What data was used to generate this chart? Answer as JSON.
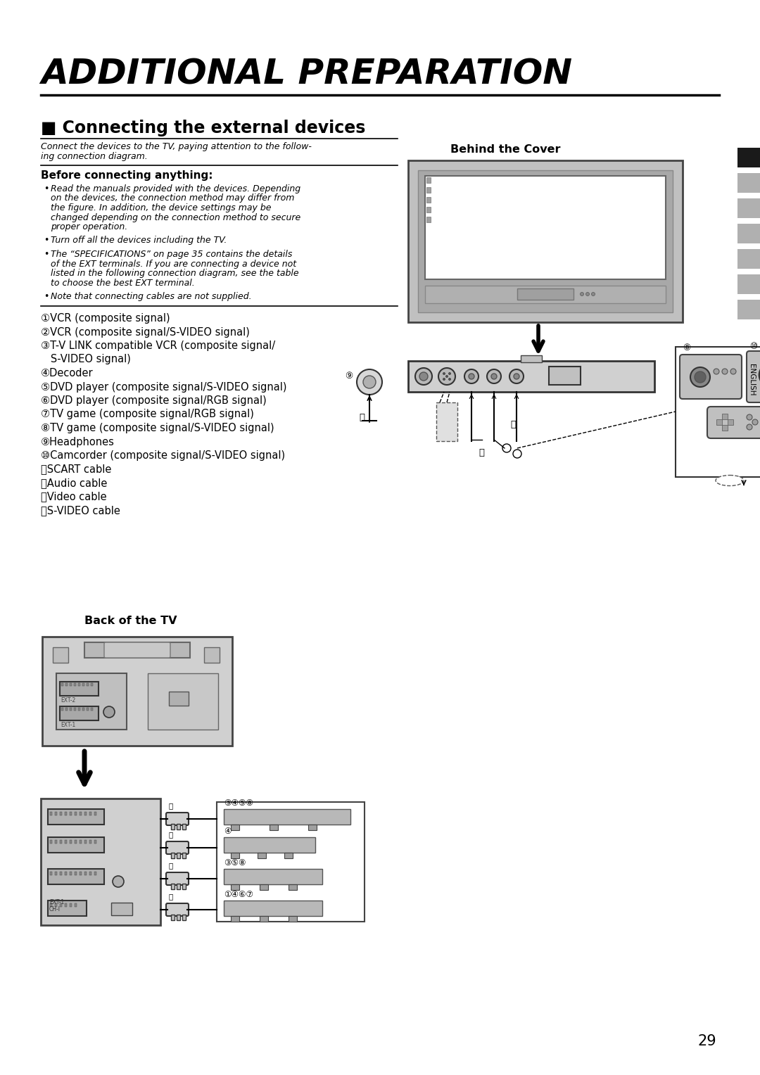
{
  "title": "ADDITIONAL PREPARATION",
  "section_title": "■ Connecting the external devices",
  "intro_line1": "Connect the devices to the TV, paying attention to the follow-",
  "intro_line2": "ing connection diagram.",
  "before_title": "Before connecting anything:",
  "bullet1_lines": [
    "Read the manuals provided with the devices. Depending",
    "on the devices, the connection method may differ from",
    "the figure. In addition, the device settings may be",
    "changed depending on the connection method to secure",
    "proper operation."
  ],
  "bullet2": "Turn off all the devices including the TV.",
  "bullet3_lines": [
    "The “SPECIFICATIONS” on page 35 contains the details",
    "of the EXT terminals. If you are connecting a device not",
    "listed in the following connection diagram, see the table",
    "to choose the best EXT terminal."
  ],
  "bullet4": "Note that connecting cables are not supplied.",
  "items": [
    [
      "①",
      "VCR (composite signal)"
    ],
    [
      "②",
      "VCR (composite signal/S-VIDEO signal)"
    ],
    [
      "③",
      "T-V LINK compatible VCR (composite signal/"
    ],
    [
      "",
      "   S-VIDEO signal)"
    ],
    [
      "④",
      "Decoder"
    ],
    [
      "⑤",
      "DVD player (composite signal/S-VIDEO signal)"
    ],
    [
      "⑥",
      "DVD player (composite signal/RGB signal)"
    ],
    [
      "⑦",
      "TV game (composite signal/RGB signal)"
    ],
    [
      "⑧",
      "TV game (composite signal/S-VIDEO signal)"
    ],
    [
      "⑨",
      "Headphones"
    ],
    [
      "⑩",
      "Camcorder (composite signal/S-VIDEO signal)"
    ],
    [
      "⑪",
      "SCART cable"
    ],
    [
      "⑫",
      "Audio cable"
    ],
    [
      "⑬",
      "Video cable"
    ],
    [
      "⑭",
      "S-VIDEO cable"
    ]
  ],
  "behind_cover_title": "Behind the Cover",
  "back_tv_title": "Back of the TV",
  "page_number": "29",
  "english_label": "ENGLISH",
  "tab_colors": [
    "#1a1a1a",
    "#b0b0b0",
    "#b0b0b0",
    "#b0b0b0",
    "#b0b0b0",
    "#b0b0b0",
    "#b0b0b0"
  ]
}
